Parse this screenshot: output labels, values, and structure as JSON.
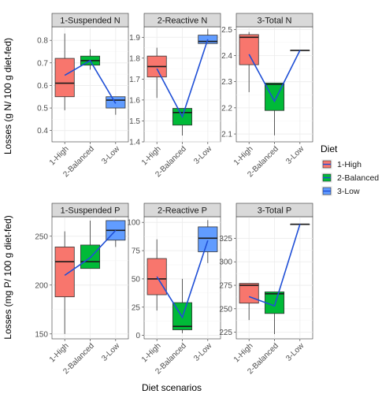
{
  "colors": {
    "high": "#F8766D",
    "balanced": "#00BA38",
    "low": "#619CFF",
    "mean_line": "#1F4FD6",
    "strip_fill": "#D9D9D9",
    "grid": "#EBEBEB"
  },
  "legend": {
    "title": "Diet",
    "items": [
      {
        "label": "1-High",
        "color": "#F8766D"
      },
      {
        "label": "2-Balanced",
        "color": "#00BA38"
      },
      {
        "label": "3-Low",
        "color": "#619CFF"
      }
    ]
  },
  "axes": {
    "x_title": "Diet scenarios",
    "y_title_top": "Losses (g N/ 100 g diet-fed)",
    "y_title_bottom": "Losses (mg P/ 100 g diet-fed)"
  },
  "chart_data": [
    {
      "type": "box",
      "title": "1-Suspended N",
      "categories": [
        "1-High",
        "2-Balanced",
        "3-Low"
      ],
      "yticks": [
        0.4,
        0.5,
        0.6,
        0.7,
        0.8
      ],
      "ylim": [
        0.35,
        0.86
      ],
      "boxes": [
        {
          "min": 0.49,
          "q1": 0.55,
          "median": 0.61,
          "q3": 0.72,
          "max": 0.83
        },
        {
          "min": 0.67,
          "q1": 0.69,
          "median": 0.71,
          "q3": 0.73,
          "max": 0.76
        },
        {
          "min": 0.47,
          "q1": 0.5,
          "median": 0.535,
          "q3": 0.55,
          "max": 0.55
        }
      ],
      "means": [
        0.645,
        0.71,
        0.52
      ]
    },
    {
      "type": "box",
      "title": "2-Reactive N",
      "categories": [
        "1-High",
        "2-Balanced",
        "3-Low"
      ],
      "yticks": [
        1.4,
        1.5,
        1.6,
        1.7,
        1.8,
        1.9
      ],
      "ylim": [
        1.4,
        1.95
      ],
      "boxes": [
        {
          "min": 1.61,
          "q1": 1.71,
          "median": 1.76,
          "q3": 1.81,
          "max": 1.85
        },
        {
          "min": 1.43,
          "q1": 1.48,
          "median": 1.54,
          "q3": 1.56,
          "max": 1.56
        },
        {
          "min": 1.87,
          "q1": 1.87,
          "median": 1.88,
          "q3": 1.91,
          "max": 1.94
        }
      ],
      "means": [
        1.75,
        1.52,
        1.89
      ]
    },
    {
      "type": "box",
      "title": "3-Total N",
      "categories": [
        "1-High",
        "2-Balanced",
        "3-Low"
      ],
      "yticks": [
        2.1,
        2.2,
        2.3,
        2.4,
        2.5
      ],
      "ylim": [
        2.07,
        2.51
      ],
      "boxes": [
        {
          "min": 2.26,
          "q1": 2.365,
          "median": 2.47,
          "q3": 2.48,
          "max": 2.49
        },
        {
          "min": 2.095,
          "q1": 2.19,
          "median": 2.29,
          "q3": 2.295,
          "max": 2.295
        },
        {
          "min": 2.42,
          "q1": 2.42,
          "median": 2.42,
          "q3": 2.42,
          "max": 2.42
        }
      ],
      "means": [
        2.405,
        2.225,
        2.42
      ]
    },
    {
      "type": "box",
      "title": "1-Suspended P",
      "categories": [
        "1-High",
        "2-Balanced",
        "3-Low"
      ],
      "yticks": [
        150,
        200,
        250
      ],
      "ylim": [
        145,
        270
      ],
      "boxes": [
        {
          "min": 150,
          "q1": 188,
          "median": 224,
          "q3": 239,
          "max": 255
        },
        {
          "min": 217,
          "q1": 217,
          "median": 224,
          "q3": 241,
          "max": 266
        },
        {
          "min": 239,
          "q1": 246,
          "median": 256,
          "q3": 266,
          "max": 266
        }
      ],
      "means": [
        210,
        228,
        256
      ]
    },
    {
      "type": "box",
      "title": "2-Reactive P",
      "categories": [
        "1-High",
        "2-Balanced",
        "3-Low"
      ],
      "yticks": [
        0,
        25,
        50,
        75,
        100
      ],
      "ylim": [
        -3,
        105
      ],
      "boxes": [
        {
          "min": 22,
          "q1": 36,
          "median": 50,
          "q3": 68,
          "max": 85
        },
        {
          "min": 2,
          "q1": 5,
          "median": 8,
          "q3": 29,
          "max": 50
        },
        {
          "min": 64,
          "q1": 74,
          "median": 86,
          "q3": 96,
          "max": 102
        }
      ],
      "means": [
        52,
        16,
        84
      ]
    },
    {
      "type": "box",
      "title": "3-Total P",
      "categories": [
        "1-High",
        "2-Balanced",
        "3-Low"
      ],
      "yticks": [
        225,
        250,
        275,
        300,
        325
      ],
      "ylim": [
        218,
        348
      ],
      "boxes": [
        {
          "min": 238,
          "q1": 256,
          "median": 275,
          "q3": 277,
          "max": 277
        },
        {
          "min": 223,
          "q1": 245,
          "median": 266,
          "q3": 268,
          "max": 268
        },
        {
          "min": 340,
          "q1": 340,
          "median": 340,
          "q3": 340,
          "max": 340
        }
      ],
      "means": [
        263,
        253,
        340
      ]
    }
  ]
}
